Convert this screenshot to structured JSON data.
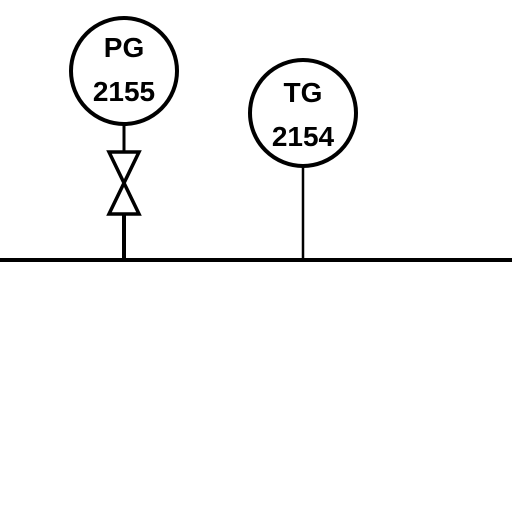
{
  "colors": {
    "line": "#000000",
    "background": "#ffffff",
    "bubble_fill": "#ffffff"
  },
  "process_line": {
    "name": "process-line"
  },
  "instruments": [
    {
      "tag": "PG",
      "number": "2155",
      "has_valve": true
    },
    {
      "tag": "TG",
      "number": "2154",
      "has_valve": false
    }
  ]
}
